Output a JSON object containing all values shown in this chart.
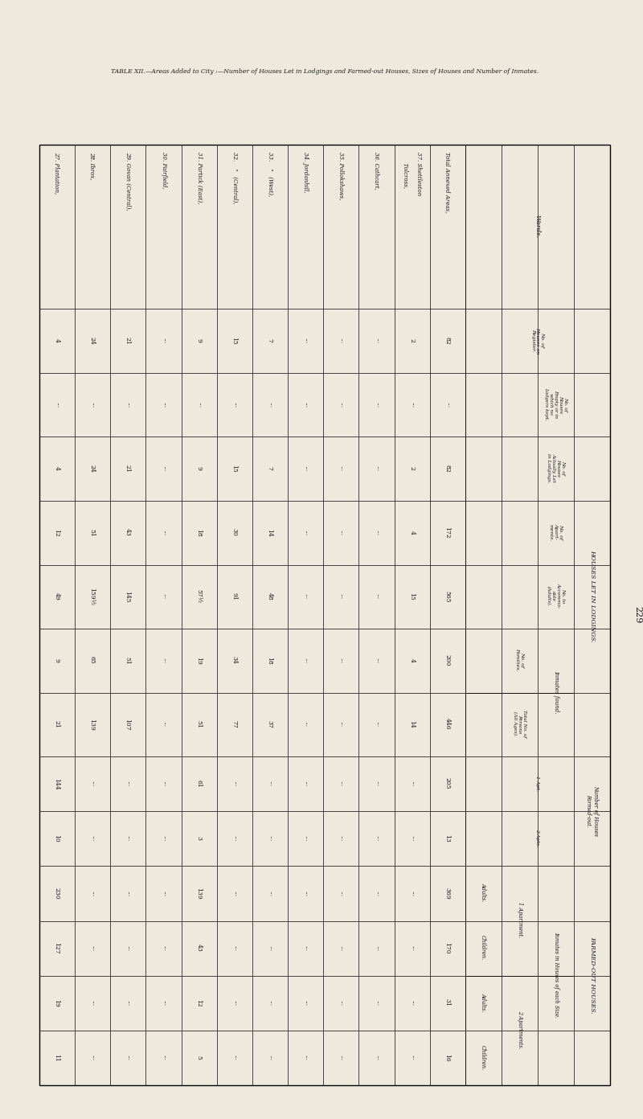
{
  "page_number": "229",
  "title": "TABLE XII.—Areas Added to City :—Number of Houses Let in Lodgings and Farmed-out Houses, Sizes of Houses and Number of Inmates.",
  "bg_color": "#ede9dc",
  "text_color": "#1a1a1a",
  "wards": [
    "27. Plantation,",
    "28. Ibrox,",
    "29. Govan (Central),",
    "30. Fairfield,",
    "31. Partick (East),",
    "32.    „   (Central),",
    "33.    „   (West),",
    "34. Jordanhill,",
    "35. Pollokshaws,",
    "36. Cathcart,",
    "37. Shettleston",
    "      Tolcross,",
    "Total Annexed Areas,"
  ],
  "data": {
    "houses_on_register": [
      "4",
      "24",
      "21",
      "...",
      "9",
      "15",
      "7",
      "...",
      "...",
      "...",
      "2",
      "",
      "82"
    ],
    "houses_empty": [
      "...",
      "...",
      "...",
      "...",
      "...",
      "...",
      "...",
      "...",
      "...",
      "...",
      "...",
      "",
      "..."
    ],
    "houses_actually_let": [
      "4",
      "24",
      "21",
      "...",
      "9",
      "15",
      "7",
      "...",
      "...",
      "...",
      "2",
      "",
      "82"
    ],
    "no_apartments": [
      "12",
      "51",
      "43",
      "...",
      "18",
      "30",
      "14",
      "...",
      "...",
      "...",
      "4",
      "",
      "172"
    ],
    "no_accommodate": [
      "49",
      "159½",
      "145",
      "...",
      "57½",
      "91",
      "48",
      "...",
      "...",
      "...",
      "15",
      "",
      "565"
    ],
    "no_families": [
      "9",
      "65",
      "51",
      "...",
      "19",
      "34",
      "18",
      "...",
      "...",
      "...",
      "4",
      "",
      "200"
    ],
    "total_persons": [
      "21",
      "139",
      "107",
      "...",
      "51",
      "77",
      "37",
      "...",
      "...",
      "...",
      "14",
      "",
      "446"
    ],
    "farmed_1apt": [
      "144",
      "...",
      "...",
      "...",
      "61",
      "...",
      "...",
      "...",
      "...",
      "...",
      "...",
      "",
      "205"
    ],
    "farmed_2apt": [
      "10",
      "...",
      "...",
      "...",
      "3",
      "...",
      "...",
      "...",
      "...",
      "...",
      "...",
      "",
      "13"
    ],
    "apt1_adults": [
      "230",
      "...",
      "...",
      "...",
      "139",
      "...",
      "...",
      "...",
      "...",
      "...",
      "...",
      "",
      "369"
    ],
    "apt1_children": [
      "127",
      "...",
      "...",
      "...",
      "43",
      "...",
      "...",
      "...",
      "...",
      "...",
      "...",
      "",
      "170"
    ],
    "apt2_adults": [
      "19",
      "...",
      "...",
      "...",
      "12",
      "...",
      "...",
      "...",
      "...",
      "...",
      "...",
      "",
      "31"
    ],
    "apt2_children": [
      "11",
      "...",
      "...",
      "...",
      "5",
      "...",
      "...",
      "...",
      "...",
      "...",
      "...",
      "",
      "16"
    ]
  }
}
